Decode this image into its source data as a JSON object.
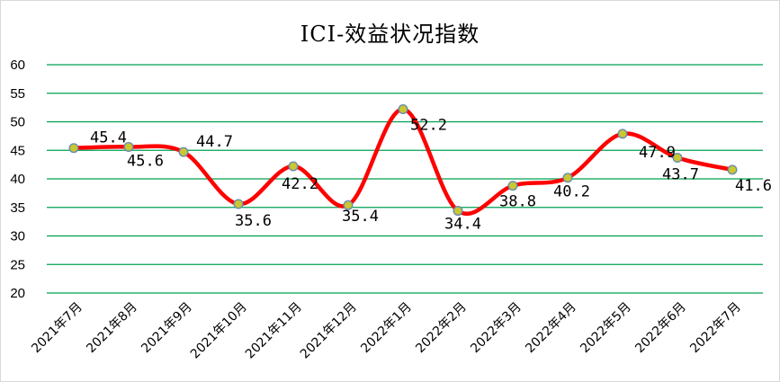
{
  "chart_data": {
    "type": "line",
    "title": "ICI-效益状况指数",
    "xlabel": "",
    "ylabel": "",
    "categories": [
      "2021年7月",
      "2021年8月",
      "2021年9月",
      "2021年10月",
      "2021年11月",
      "2021年12月",
      "2022年1月",
      "2022年2月",
      "2022年3月",
      "2022年4月",
      "2022年5月",
      "2022年6月",
      "2022年7月"
    ],
    "series": [
      {
        "values": [
          45.4,
          45.6,
          44.7,
          35.6,
          42.2,
          35.4,
          52.2,
          34.4,
          38.8,
          40.2,
          47.9,
          43.7,
          41.6
        ]
      }
    ],
    "ylim": [
      20,
      60
    ],
    "yticks": [
      20,
      25,
      30,
      35,
      40,
      45,
      50,
      55,
      60
    ],
    "grid": true,
    "smooth": true,
    "line_color": "#ff0000",
    "marker_color": "#c8c832",
    "grid_color": "#00a050"
  }
}
